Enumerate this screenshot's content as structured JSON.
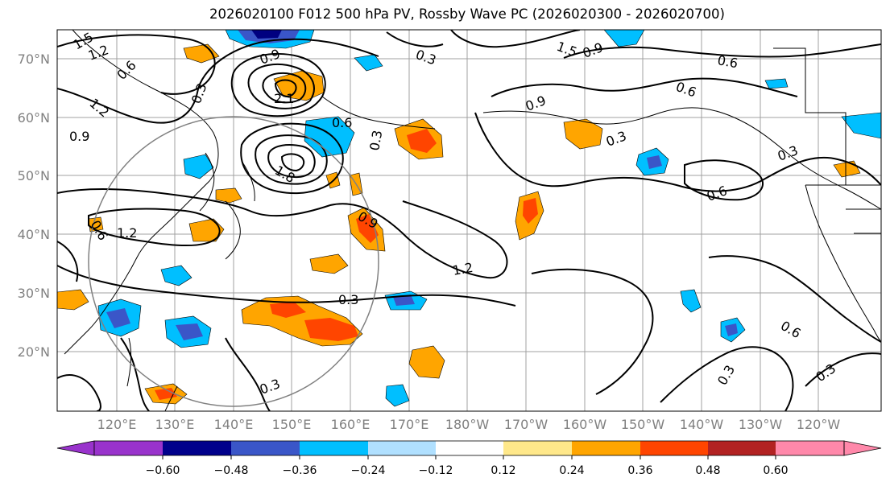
{
  "title": "2026020100 F012 500 hPa PV, Rossby Wave PC (2026020300 - 2026020700)",
  "map": {
    "lat_labels": [
      "70°N",
      "60°N",
      "50°N",
      "40°N",
      "30°N",
      "20°N"
    ],
    "lon_labels": [
      "120°E",
      "130°E",
      "140°E",
      "150°E",
      "160°E",
      "170°E",
      "180°W",
      "170°W",
      "160°W",
      "150°W",
      "140°W",
      "130°W",
      "120°W"
    ],
    "contour_labels": [
      "1.5",
      "1.2",
      "0.6",
      "0.9",
      "0.3",
      "1.2",
      "0.9",
      "0.3",
      "1.5",
      "0.9",
      "0.6",
      "0.6",
      "0.9",
      "0.6",
      "0.3",
      "0.3",
      "0.3",
      "0.6",
      "0.9",
      "1.2",
      "0.3",
      "0.6",
      "0.3",
      "0.3",
      "2.1",
      "1.8",
      "0.3",
      "1.2",
      "0.6"
    ],
    "colors": {
      "neg_strong": "#000080",
      "neg_mid": "#3a56c8",
      "neg_light": "#00bfff",
      "pos_mid": "#ffa500",
      "pos_strong": "#ff4500",
      "pos_light": "#ffe88a"
    }
  },
  "colorbar": {
    "ticks": [
      "−0.60",
      "−0.48",
      "−0.36",
      "−0.24",
      "−0.12",
      "0.12",
      "0.24",
      "0.36",
      "0.48",
      "0.60"
    ],
    "colors": [
      "#9933cc",
      "#00008b",
      "#3a56c8",
      "#00bfff",
      "#b0e0ff",
      "#ffffff",
      "#ffe88a",
      "#ffa500",
      "#ff4500",
      "#b22222",
      "#ff88aa"
    ]
  }
}
